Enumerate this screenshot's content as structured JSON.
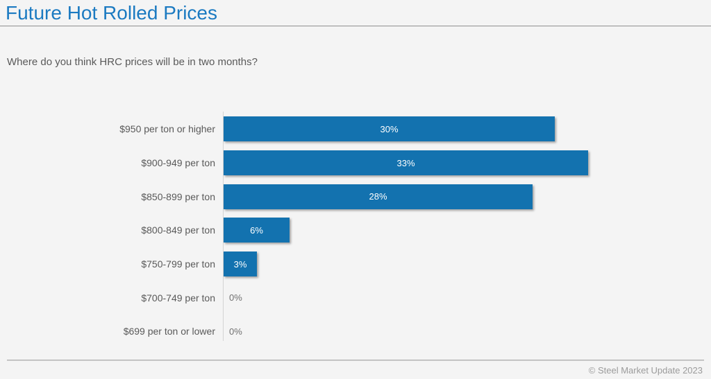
{
  "page": {
    "title": "Future Hot Rolled Prices",
    "question": "Where do you think HRC prices will be in two months?",
    "footer": "© Steel Market Update 2023"
  },
  "colors": {
    "title_blue": "#1b7ac1",
    "bar_blue": "#1372af",
    "background": "#f4f4f4"
  },
  "chart_data": {
    "type": "bar",
    "orientation": "horizontal",
    "title": "Future Hot Rolled Prices",
    "subtitle": "Where do you think HRC prices will be in two months?",
    "categories": [
      "$950 per ton or higher",
      "$900-949 per ton",
      "$850-899 per ton",
      "$800-849 per ton",
      "$750-799 per ton",
      "$700-749 per ton",
      "$699 per ton or lower"
    ],
    "values": [
      30,
      33,
      28,
      6,
      3,
      0,
      0
    ],
    "value_labels": [
      "30%",
      "33%",
      "28%",
      "6%",
      "3%",
      "0%",
      "0%"
    ],
    "value_suffix": "%",
    "xlabel": "",
    "ylabel": "",
    "grid": false,
    "legend": false,
    "bar_color": "#1372af",
    "value_label_position": "inside-center"
  }
}
